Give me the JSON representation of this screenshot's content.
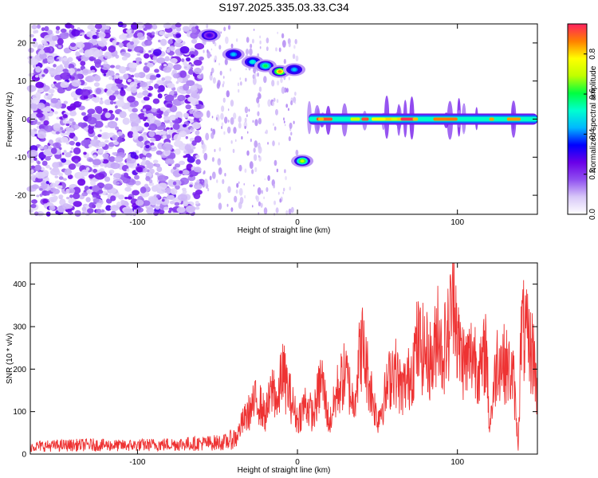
{
  "figure": {
    "title": "S197.2025.335.03.33.C34"
  },
  "chart_data": [
    {
      "type": "heatmap",
      "title": "",
      "xlabel": "Height of straight line (km)",
      "ylabel": "Frequency (Hz)",
      "xlim": [
        -167,
        150
      ],
      "ylim": [
        -25,
        25
      ],
      "xticks": [
        -100,
        0,
        100
      ],
      "yticks": [
        -20,
        -10,
        0,
        10,
        20
      ],
      "grid": false,
      "colorbar": {
        "label": "Normalized spectral amplitude",
        "range": [
          0.0,
          0.95
        ],
        "ticks": [
          0.0,
          0.2,
          0.4,
          0.6,
          0.8
        ],
        "colors": [
          "#ffffff",
          "#d8c8f8",
          "#9050f0",
          "#6a00e8",
          "#0000ff",
          "#00b8ff",
          "#00ffd0",
          "#00ff40",
          "#c0ff00",
          "#ffff00",
          "#ff8000",
          "#ff2060"
        ]
      },
      "features": [
        {
          "description_shown": "scattered weak noise",
          "x_range": [
            -167,
            -60
          ],
          "y_range": [
            -25,
            25
          ],
          "amplitude": 0.1
        },
        {
          "description_shown": "blobs near source",
          "points": [
            {
              "x": -55,
              "y": 22,
              "amplitude": 0.3
            },
            {
              "x": -40,
              "y": 17,
              "amplitude": 0.45
            },
            {
              "x": -28,
              "y": 15,
              "amplitude": 0.5
            },
            {
              "x": -20,
              "y": 14,
              "amplitude": 0.6
            },
            {
              "x": -11,
              "y": 12.5,
              "amplitude": 0.85
            },
            {
              "x": -2,
              "y": 13,
              "amplitude": 0.45
            },
            {
              "x": 3,
              "y": -11,
              "amplitude": 0.7
            }
          ]
        },
        {
          "description_shown": "strong line at 0 Hz",
          "x_range": [
            7,
            150
          ],
          "y": 0,
          "amplitude": 0.9
        }
      ]
    },
    {
      "type": "line",
      "title": "",
      "xlabel": "Height of straight line (km)",
      "ylabel": "SNR (10 * v/v)",
      "xlim": [
        -167,
        150
      ],
      "ylim": [
        0,
        450
      ],
      "xticks": [
        -100,
        0,
        100
      ],
      "yticks": [
        0,
        100,
        200,
        300,
        400
      ],
      "grid": false,
      "series": [
        {
          "color": "#ee3333",
          "x": [
            -167,
            -150,
            -130,
            -110,
            -90,
            -70,
            -55,
            -45,
            -38,
            -35,
            -30,
            -25,
            -20,
            -15,
            -12,
            -10,
            -5,
            0,
            5,
            10,
            15,
            20,
            25,
            30,
            35,
            40,
            45,
            50,
            55,
            60,
            65,
            70,
            75,
            80,
            85,
            88,
            90,
            95,
            98,
            100,
            105,
            110,
            115,
            118,
            120,
            125,
            130,
            135,
            138,
            140,
            145,
            148,
            150
          ],
          "y": [
            18,
            20,
            22,
            20,
            22,
            24,
            26,
            28,
            40,
            70,
            100,
            130,
            90,
            160,
            110,
            200,
            140,
            80,
            120,
            90,
            180,
            70,
            150,
            190,
            120,
            260,
            170,
            80,
            140,
            210,
            150,
            180,
            260,
            240,
            210,
            330,
            230,
            290,
            450,
            260,
            210,
            240,
            190,
            260,
            60,
            230,
            210,
            180,
            20,
            300,
            250,
            230,
            120
          ]
        }
      ]
    }
  ]
}
